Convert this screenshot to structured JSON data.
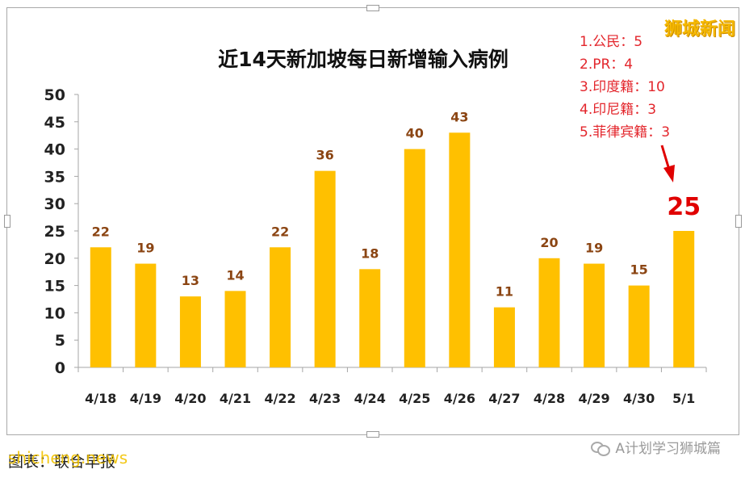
{
  "watermark_brand": "狮城新闻",
  "notes": [
    "1.公民：5",
    "2.PR：4",
    "3.印度籍：10",
    "4.印尼籍：3",
    "5.菲律宾籍：3"
  ],
  "source_caption": "图表：联合早报",
  "source_watermark": "shicheng.news",
  "wechat_account": "A计划学习狮城篇",
  "colors": {
    "bar": "#ffc000",
    "value_label": "#8b4513",
    "highlight_label": "#e00000",
    "notes_text": "#e3262c"
  },
  "chart_data": {
    "type": "bar",
    "title": "近14天新加坡每日新增输入病例",
    "categories": [
      "4/18",
      "4/19",
      "4/20",
      "4/21",
      "4/22",
      "4/23",
      "4/24",
      "4/25",
      "4/26",
      "4/27",
      "4/28",
      "4/29",
      "4/30",
      "5/1"
    ],
    "values": [
      22,
      19,
      13,
      14,
      22,
      36,
      18,
      40,
      43,
      11,
      20,
      19,
      15,
      25
    ],
    "ylim": [
      0,
      50
    ],
    "yticks": [
      0,
      5,
      10,
      15,
      20,
      25,
      30,
      35,
      40,
      45,
      50
    ],
    "grid": false,
    "legend": "none",
    "highlight_index": 13,
    "xlabel": "",
    "ylabel": ""
  }
}
